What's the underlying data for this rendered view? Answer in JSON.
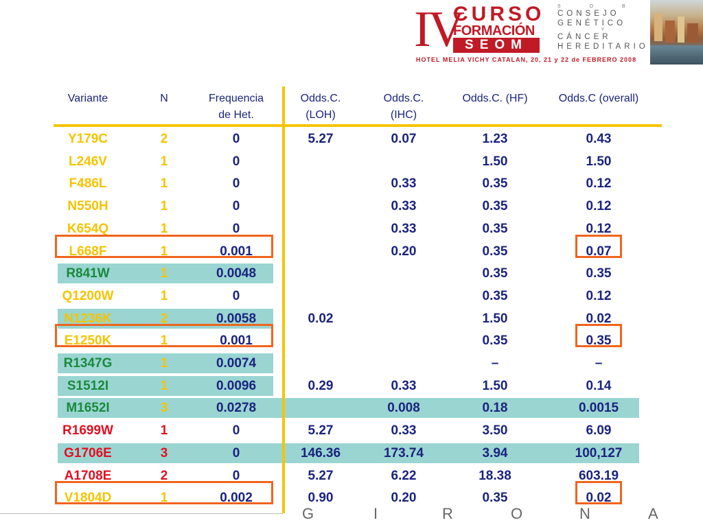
{
  "header": {
    "roman": "IV",
    "curso": "CURSO",
    "formacion": "FORMACIÓN",
    "seom": "SEOM",
    "hotel": "HOTEL MELIA VICHY CATALAN, 20, 21 y 22 de FEBRERO 2008",
    "side_lines": [
      "CONSEJO",
      "GENÉTICO",
      "CÁNCER",
      "HEREDITARIO"
    ],
    "side_small1": "S O B R E",
    "side_small2": "Y"
  },
  "columns": [
    {
      "l1": "Variante",
      "l2": ""
    },
    {
      "l1": "N",
      "l2": ""
    },
    {
      "l1": "Frequencia",
      "l2": "de Het."
    },
    {
      "l1": "Odds.C.",
      "l2": "(LOH)"
    },
    {
      "l1": "Odds.C.",
      "l2": "(IHC)"
    },
    {
      "l1": "Odds.C. (HF)",
      "l2": ""
    },
    {
      "l1": "Odds.C (overall)",
      "l2": ""
    }
  ],
  "colors": {
    "yellow": "#f5c400",
    "green": "#1a8a3a",
    "red": "#e01020",
    "navy": "#1a237e",
    "teal_bg": "#9ad5d2",
    "orange_box": "#f0641c"
  },
  "rows": [
    {
      "variant": "Y179C",
      "n": "2",
      "het": "0",
      "loh": "5.27",
      "ihc": "0.07",
      "hf": "1.23",
      "overall": "0.43",
      "vcolor": "yellow",
      "highlight": "none",
      "boxed": false
    },
    {
      "variant": "L246V",
      "n": "1",
      "het": "0",
      "loh": "",
      "ihc": "",
      "hf": "1.50",
      "overall": "1.50",
      "vcolor": "yellow",
      "highlight": "none",
      "boxed": false
    },
    {
      "variant": "F486L",
      "n": "1",
      "het": "0",
      "loh": "",
      "ihc": "0.33",
      "hf": "0.35",
      "overall": "0.12",
      "vcolor": "yellow",
      "highlight": "none",
      "boxed": false
    },
    {
      "variant": "N550H",
      "n": "1",
      "het": "0",
      "loh": "",
      "ihc": "0.33",
      "hf": "0.35",
      "overall": "0.12",
      "vcolor": "yellow",
      "highlight": "none",
      "boxed": false
    },
    {
      "variant": "K654Q",
      "n": "1",
      "het": "0",
      "loh": "",
      "ihc": "0.33",
      "hf": "0.35",
      "overall": "0.12",
      "vcolor": "yellow",
      "highlight": "none",
      "boxed": false
    },
    {
      "variant": "L668F",
      "n": "1",
      "het": "0.001",
      "loh": "",
      "ihc": "0.20",
      "hf": "0.35",
      "overall": "0.07",
      "vcolor": "yellow",
      "highlight": "none",
      "boxed": true
    },
    {
      "variant": "R841W",
      "n": "1",
      "het": "0.0048",
      "loh": "",
      "ihc": "",
      "hf": "0.35",
      "overall": "0.35",
      "vcolor": "green",
      "highlight": "short",
      "boxed": false
    },
    {
      "variant": "Q1200W",
      "n": "1",
      "het": "0",
      "loh": "",
      "ihc": "",
      "hf": "0.35",
      "overall": "0.12",
      "vcolor": "yellow",
      "highlight": "none",
      "boxed": false
    },
    {
      "variant": "N1236K",
      "n": "2",
      "het": "0.0058",
      "loh": "0.02",
      "ihc": "",
      "hf": "1.50",
      "overall": "0.02",
      "vcolor": "yellow",
      "highlight": "short",
      "boxed": false
    },
    {
      "variant": "E1250K",
      "n": "1",
      "het": "0.001",
      "loh": "",
      "ihc": "",
      "hf": "0.35",
      "overall": "0.35",
      "vcolor": "yellow",
      "highlight": "none",
      "boxed": true
    },
    {
      "variant": "R1347G",
      "n": "1",
      "het": "0.0074",
      "loh": "",
      "ihc": "",
      "hf": "–",
      "overall": "–",
      "vcolor": "green",
      "highlight": "short",
      "boxed": false
    },
    {
      "variant": "S1512I",
      "n": "1",
      "het": "0.0096",
      "loh": "0.29",
      "ihc": "0.33",
      "hf": "1.50",
      "overall": "0.14",
      "vcolor": "green",
      "highlight": "short",
      "boxed": false
    },
    {
      "variant": "M1652I",
      "n": "3",
      "het": "0.0278",
      "loh": "",
      "ihc": "0.008",
      "hf": "0.18",
      "overall": "0.0015",
      "vcolor": "green",
      "highlight": "full",
      "boxed": false
    },
    {
      "variant": "R1699W",
      "n": "1",
      "het": "0",
      "loh": "5.27",
      "ihc": "0.33",
      "hf": "3.50",
      "overall": "6.09",
      "vcolor": "red",
      "highlight": "none",
      "boxed": false
    },
    {
      "variant": "G1706E",
      "n": "3",
      "het": "0",
      "loh": "146.36",
      "ihc": "173.74",
      "hf": "3.94",
      "overall": "100,127",
      "vcolor": "red",
      "highlight": "full",
      "boxed": false
    },
    {
      "variant": "A1708E",
      "n": "2",
      "het": "0",
      "loh": "5.27",
      "ihc": "6.22",
      "hf": "18.38",
      "overall": "603.19",
      "vcolor": "red",
      "highlight": "none",
      "boxed": false
    },
    {
      "variant": "V1804D",
      "n": "1",
      "het": "0.002",
      "loh": "0.90",
      "ihc": "0.20",
      "hf": "0.35",
      "overall": "0.02",
      "vcolor": "yellow",
      "highlight": "none",
      "boxed": true
    }
  ],
  "footer": {
    "letters": [
      "G",
      "I",
      "R",
      "O",
      "N",
      "A"
    ]
  }
}
